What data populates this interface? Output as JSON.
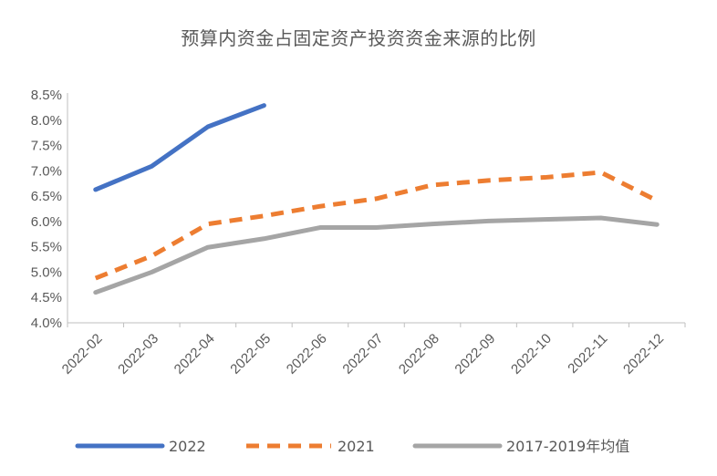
{
  "chart_data": {
    "type": "line",
    "title": "预算内资金占固定资产投资资金来源的比例",
    "categories": [
      "2022-02",
      "2022-03",
      "2022-04",
      "2022-05",
      "2022-06",
      "2022-07",
      "2022-08",
      "2022-09",
      "2022-10",
      "2022-11",
      "2022-12"
    ],
    "ylim": [
      0.04,
      0.085
    ],
    "yticks": [
      "4.0%",
      "4.5%",
      "5.0%",
      "5.5%",
      "6.0%",
      "6.5%",
      "7.0%",
      "7.5%",
      "8.0%",
      "8.5%"
    ],
    "series": [
      {
        "name": "2022",
        "color": "#4472C4",
        "style": "solid",
        "values": [
          0.0663,
          0.0709,
          0.0787,
          0.0829,
          null,
          null,
          null,
          null,
          null,
          null,
          null
        ]
      },
      {
        "name": "2021",
        "color": "#ED7D31",
        "style": "dashed",
        "values": [
          0.0488,
          0.0532,
          0.0595,
          0.0611,
          0.063,
          0.0645,
          0.0672,
          0.0681,
          0.0687,
          0.0697,
          0.0641
        ]
      },
      {
        "name": "2017-2019年均值",
        "color": "#A5A5A5",
        "style": "solid",
        "values": [
          0.046,
          0.05,
          0.0549,
          0.0566,
          0.0588,
          0.0588,
          0.0595,
          0.0601,
          0.0604,
          0.0607,
          0.0594
        ]
      }
    ],
    "grid": false,
    "legend_position": "bottom"
  }
}
